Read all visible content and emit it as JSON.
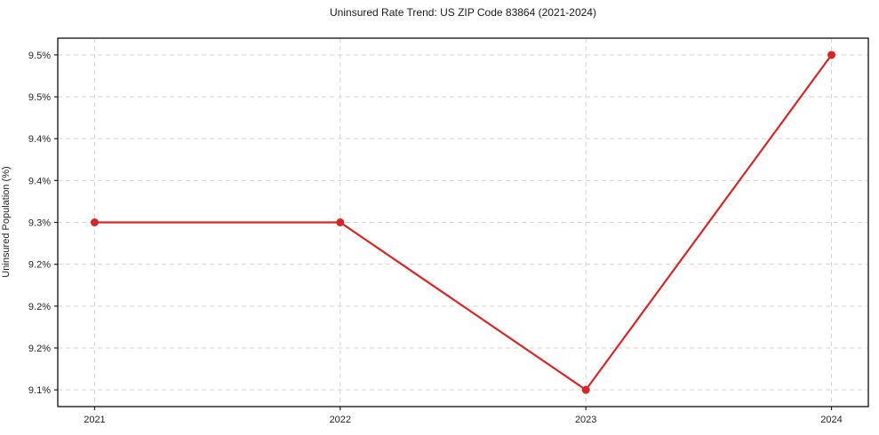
{
  "title": "Uninsured Rate Trend: US ZIP Code 83864 (2021-2024)",
  "chart_data": {
    "type": "line",
    "title": "Uninsured Rate Trend: US ZIP Code 83864 (2021-2024)",
    "xlabel": "",
    "ylabel": "Uninsured Population (%)",
    "x": [
      2021,
      2022,
      2023,
      2024
    ],
    "series": [
      {
        "name": "Uninsured Rate",
        "values": [
          9.3,
          9.3,
          9.1,
          9.5
        ]
      }
    ],
    "xticks": [
      2021,
      2022,
      2023,
      2024
    ],
    "xtick_labels": [
      "2021",
      "2022",
      "2023",
      "2024"
    ],
    "yticks": [
      9.5,
      9.45,
      9.4,
      9.35,
      9.3,
      9.25,
      9.2,
      9.15,
      9.1
    ],
    "ytick_labels": [
      "9.5%",
      "9.5%",
      "9.4%",
      "9.4%",
      "9.3%",
      "9.2%",
      "9.2%",
      "9.2%",
      "9.1%"
    ],
    "xlim": [
      2020.85,
      2024.15
    ],
    "ylim": [
      9.08,
      9.52
    ],
    "grid": "dashed",
    "legend": "none",
    "colors": {
      "line": "#d62728",
      "marker": "#d62728",
      "grid": "#d3d3d3",
      "spine": "#1f1f1f",
      "text": "#262626"
    }
  }
}
